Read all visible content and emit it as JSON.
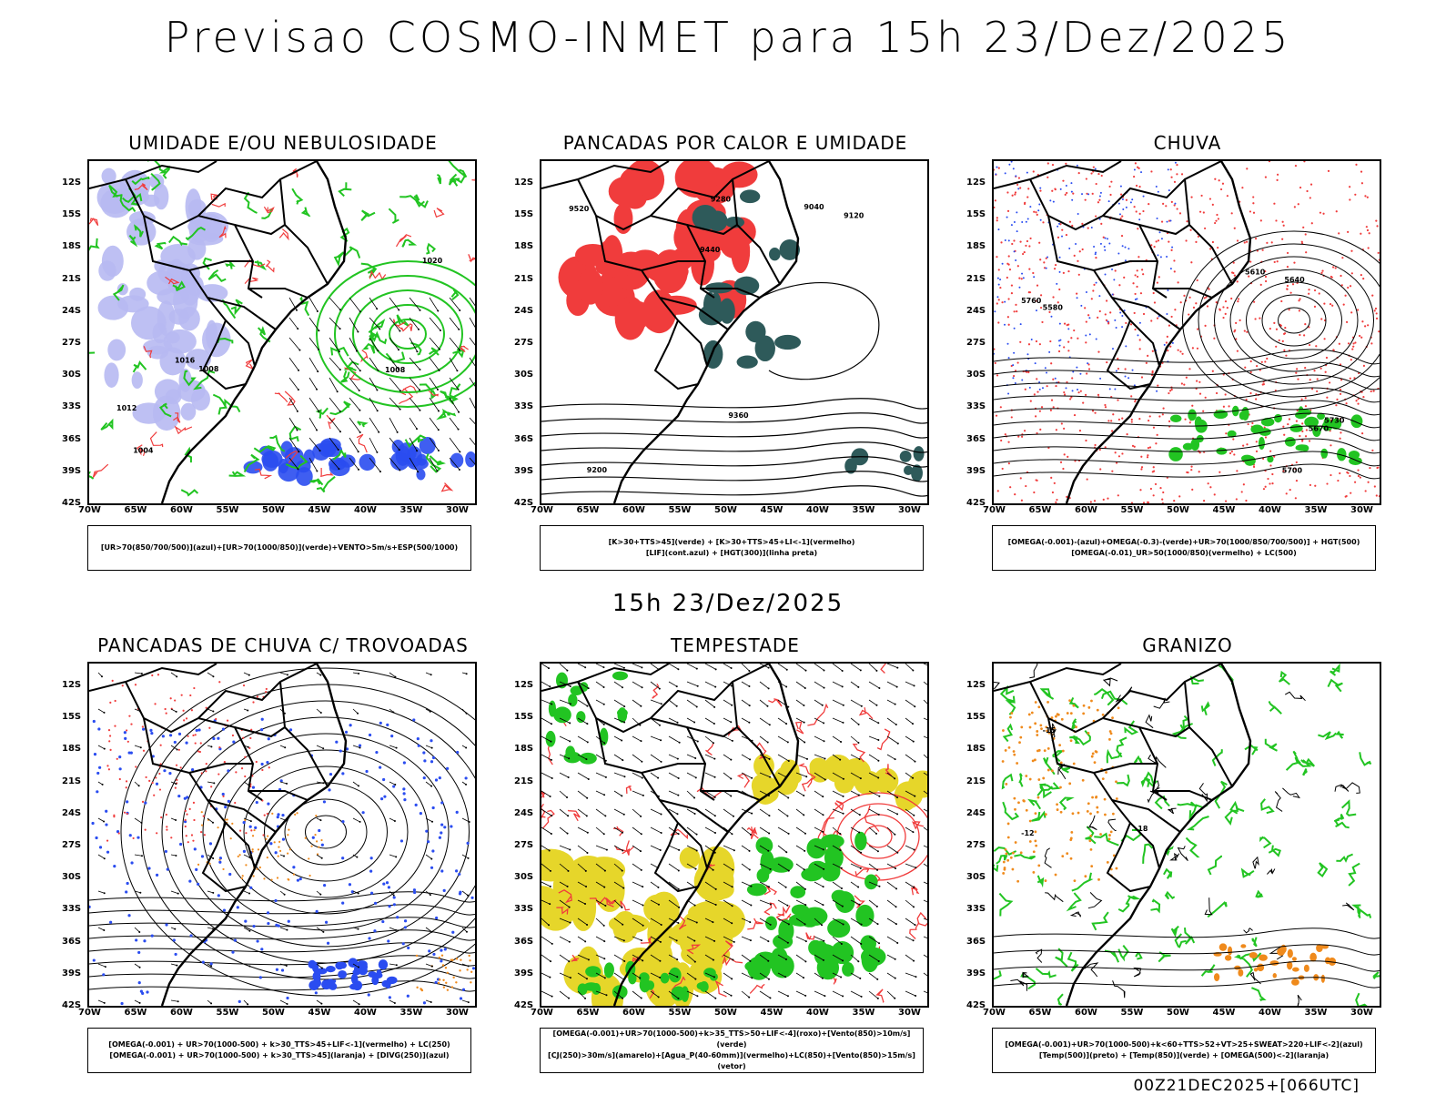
{
  "title": "Previsao COSMO-INMET  para 15h 23/Dez/2025",
  "subtitle": "15h 23/Dez/2025",
  "footer": "00Z21DEC2025+[066UTC]",
  "lat_labels": [
    "12S",
    "15S",
    "18S",
    "21S",
    "24S",
    "27S",
    "30S",
    "33S",
    "36S",
    "39S",
    "42S"
  ],
  "lon_labels": [
    "70W",
    "65W",
    "60W",
    "55W",
    "50W",
    "45W",
    "40W",
    "35W",
    "30W"
  ],
  "panels": [
    {
      "title": "UMIDADE E/OU NEBULOSIDADE",
      "legend": [
        "[UR>70(850/700/500)](azul)+[UR>70(1000/850)](verde)+VENTO>5m/s+ESP(500/1000)"
      ],
      "labels": [
        "1012",
        "1008",
        "1016",
        "1020",
        "1008",
        "1004"
      ]
    },
    {
      "title": "PANCADAS POR CALOR E UMIDADE",
      "legend": [
        "[K>30+TTS>45](verde) + [K>30+TTS>45+LI<-1](vermelho)",
        "[LIF](cont.azul) + [HGT(300)](linha preta)"
      ],
      "labels": [
        "9520",
        "9440",
        "9360",
        "9280",
        "9200",
        "9120",
        "9040"
      ]
    },
    {
      "title": "CHUVA",
      "legend": [
        "[OMEGA(-0.001)-(azul)+OMEGA(-0.3)-(verde)+UR>70(1000/850/700/500)] + HGT(500)",
        "[OMEGA(-0.01)_UR>50(1000/850)(vermelho) + LC(500)"
      ],
      "labels": [
        "5760",
        "5730",
        "5700",
        "5670",
        "5640",
        "5610",
        "5580"
      ]
    },
    {
      "title": "PANCADAS DE CHUVA C/ TROVOADAS",
      "legend": [
        "[OMEGA(-0.001) + UR>70(1000-500) + k>30_TTS>45+LIF<-1](vermelho) + LC(250)",
        "[OMEGA(-0.001) + UR>70(1000-500) + k>30_TTS>45](laranja) + [DIVG(250)](azul)"
      ],
      "labels": []
    },
    {
      "title": "TEMPESTADE",
      "legend": [
        "[OMEGA(-0.001)+UR>70(1000-500)+k>35_TTS>50+LIF<-4](roxo)+[Vento(850)>10m/s](verde)",
        "[CJ(250)>30m/s](amarelo)+[Agua_P(40-60mm)](vermelho)+LC(850)+[Vento(850)>15m/s](vetor)"
      ],
      "labels": []
    },
    {
      "title": "GRANIZO",
      "legend": [
        "[OMEGA(-0.001)+UR>70(1000-500)+k<60+TTS>52+VT>25+SWEAT>220+LIF<-2](azul)",
        "[Temp(500)](preto) + [Temp(850)](verde) + [OMEGA(500)<-2](laranja)"
      ],
      "labels": [
        "-12",
        "-15",
        "-18"
      ]
    }
  ],
  "colors": {
    "red": "#f03c3c",
    "green": "#22c422",
    "blue": "#2a4cf0",
    "lightblue": "#b7b9f2",
    "teal": "#2e5a5a",
    "yellow": "#e6d62a",
    "orange": "#ef8a1c",
    "black": "#000000"
  }
}
